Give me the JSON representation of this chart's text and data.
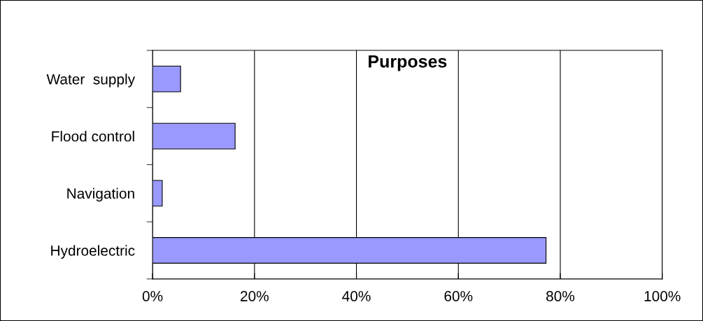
{
  "chart_data": {
    "type": "bar",
    "orientation": "horizontal",
    "title": "Purposes",
    "categories": [
      "Water  supply",
      "Flood control",
      "Navigation",
      "Hydroelectric"
    ],
    "values": [
      5.5,
      16.2,
      1.9,
      77.2
    ],
    "color": "#9999ff",
    "xlim": [
      0,
      100
    ],
    "xticks": [
      {
        "value": 0,
        "label": "0%"
      },
      {
        "value": 20,
        "label": "20%"
      },
      {
        "value": 40,
        "label": "40%"
      },
      {
        "value": 60,
        "label": "60%"
      },
      {
        "value": 80,
        "label": "80%"
      },
      {
        "value": 100,
        "label": "100%"
      }
    ],
    "grid": "x",
    "legend": false
  }
}
